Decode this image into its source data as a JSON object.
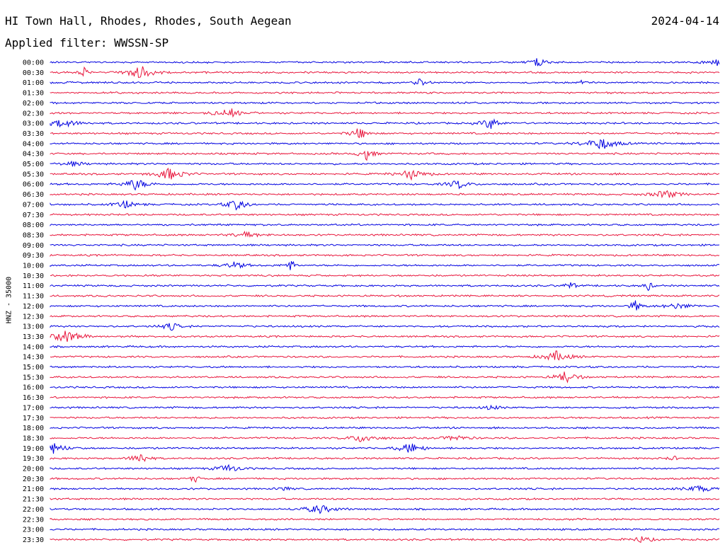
{
  "header": {
    "station": "HI Town Hall, Rhodes, Rhodes, South Aegean",
    "date": "2024-04-14",
    "filter": "Applied filter: WWSSN-SP"
  },
  "chart_data": {
    "type": "line",
    "title": "HI Town Hall, Rhodes, Rhodes, South Aegean",
    "ylabel": "HNZ - 35000",
    "xlabel": "",
    "row_labels": [
      "00:00",
      "00:30",
      "01:00",
      "01:30",
      "02:00",
      "02:30",
      "03:00",
      "03:30",
      "04:00",
      "04:30",
      "05:00",
      "05:30",
      "06:00",
      "06:30",
      "07:00",
      "07:30",
      "08:00",
      "08:30",
      "09:00",
      "09:30",
      "10:00",
      "10:30",
      "11:00",
      "11:30",
      "12:00",
      "12:30",
      "13:00",
      "13:30",
      "14:00",
      "14:30",
      "15:00",
      "15:30",
      "16:00",
      "16:30",
      "17:00",
      "17:30",
      "18:00",
      "18:30",
      "19:00",
      "19:30",
      "20:00",
      "20:30",
      "21:00",
      "21:30",
      "22:00",
      "22:30",
      "23:00",
      "23:30"
    ],
    "trace_colors": [
      "#0000e0",
      "#e8163c"
    ],
    "grid": false,
    "legend": "none"
  }
}
